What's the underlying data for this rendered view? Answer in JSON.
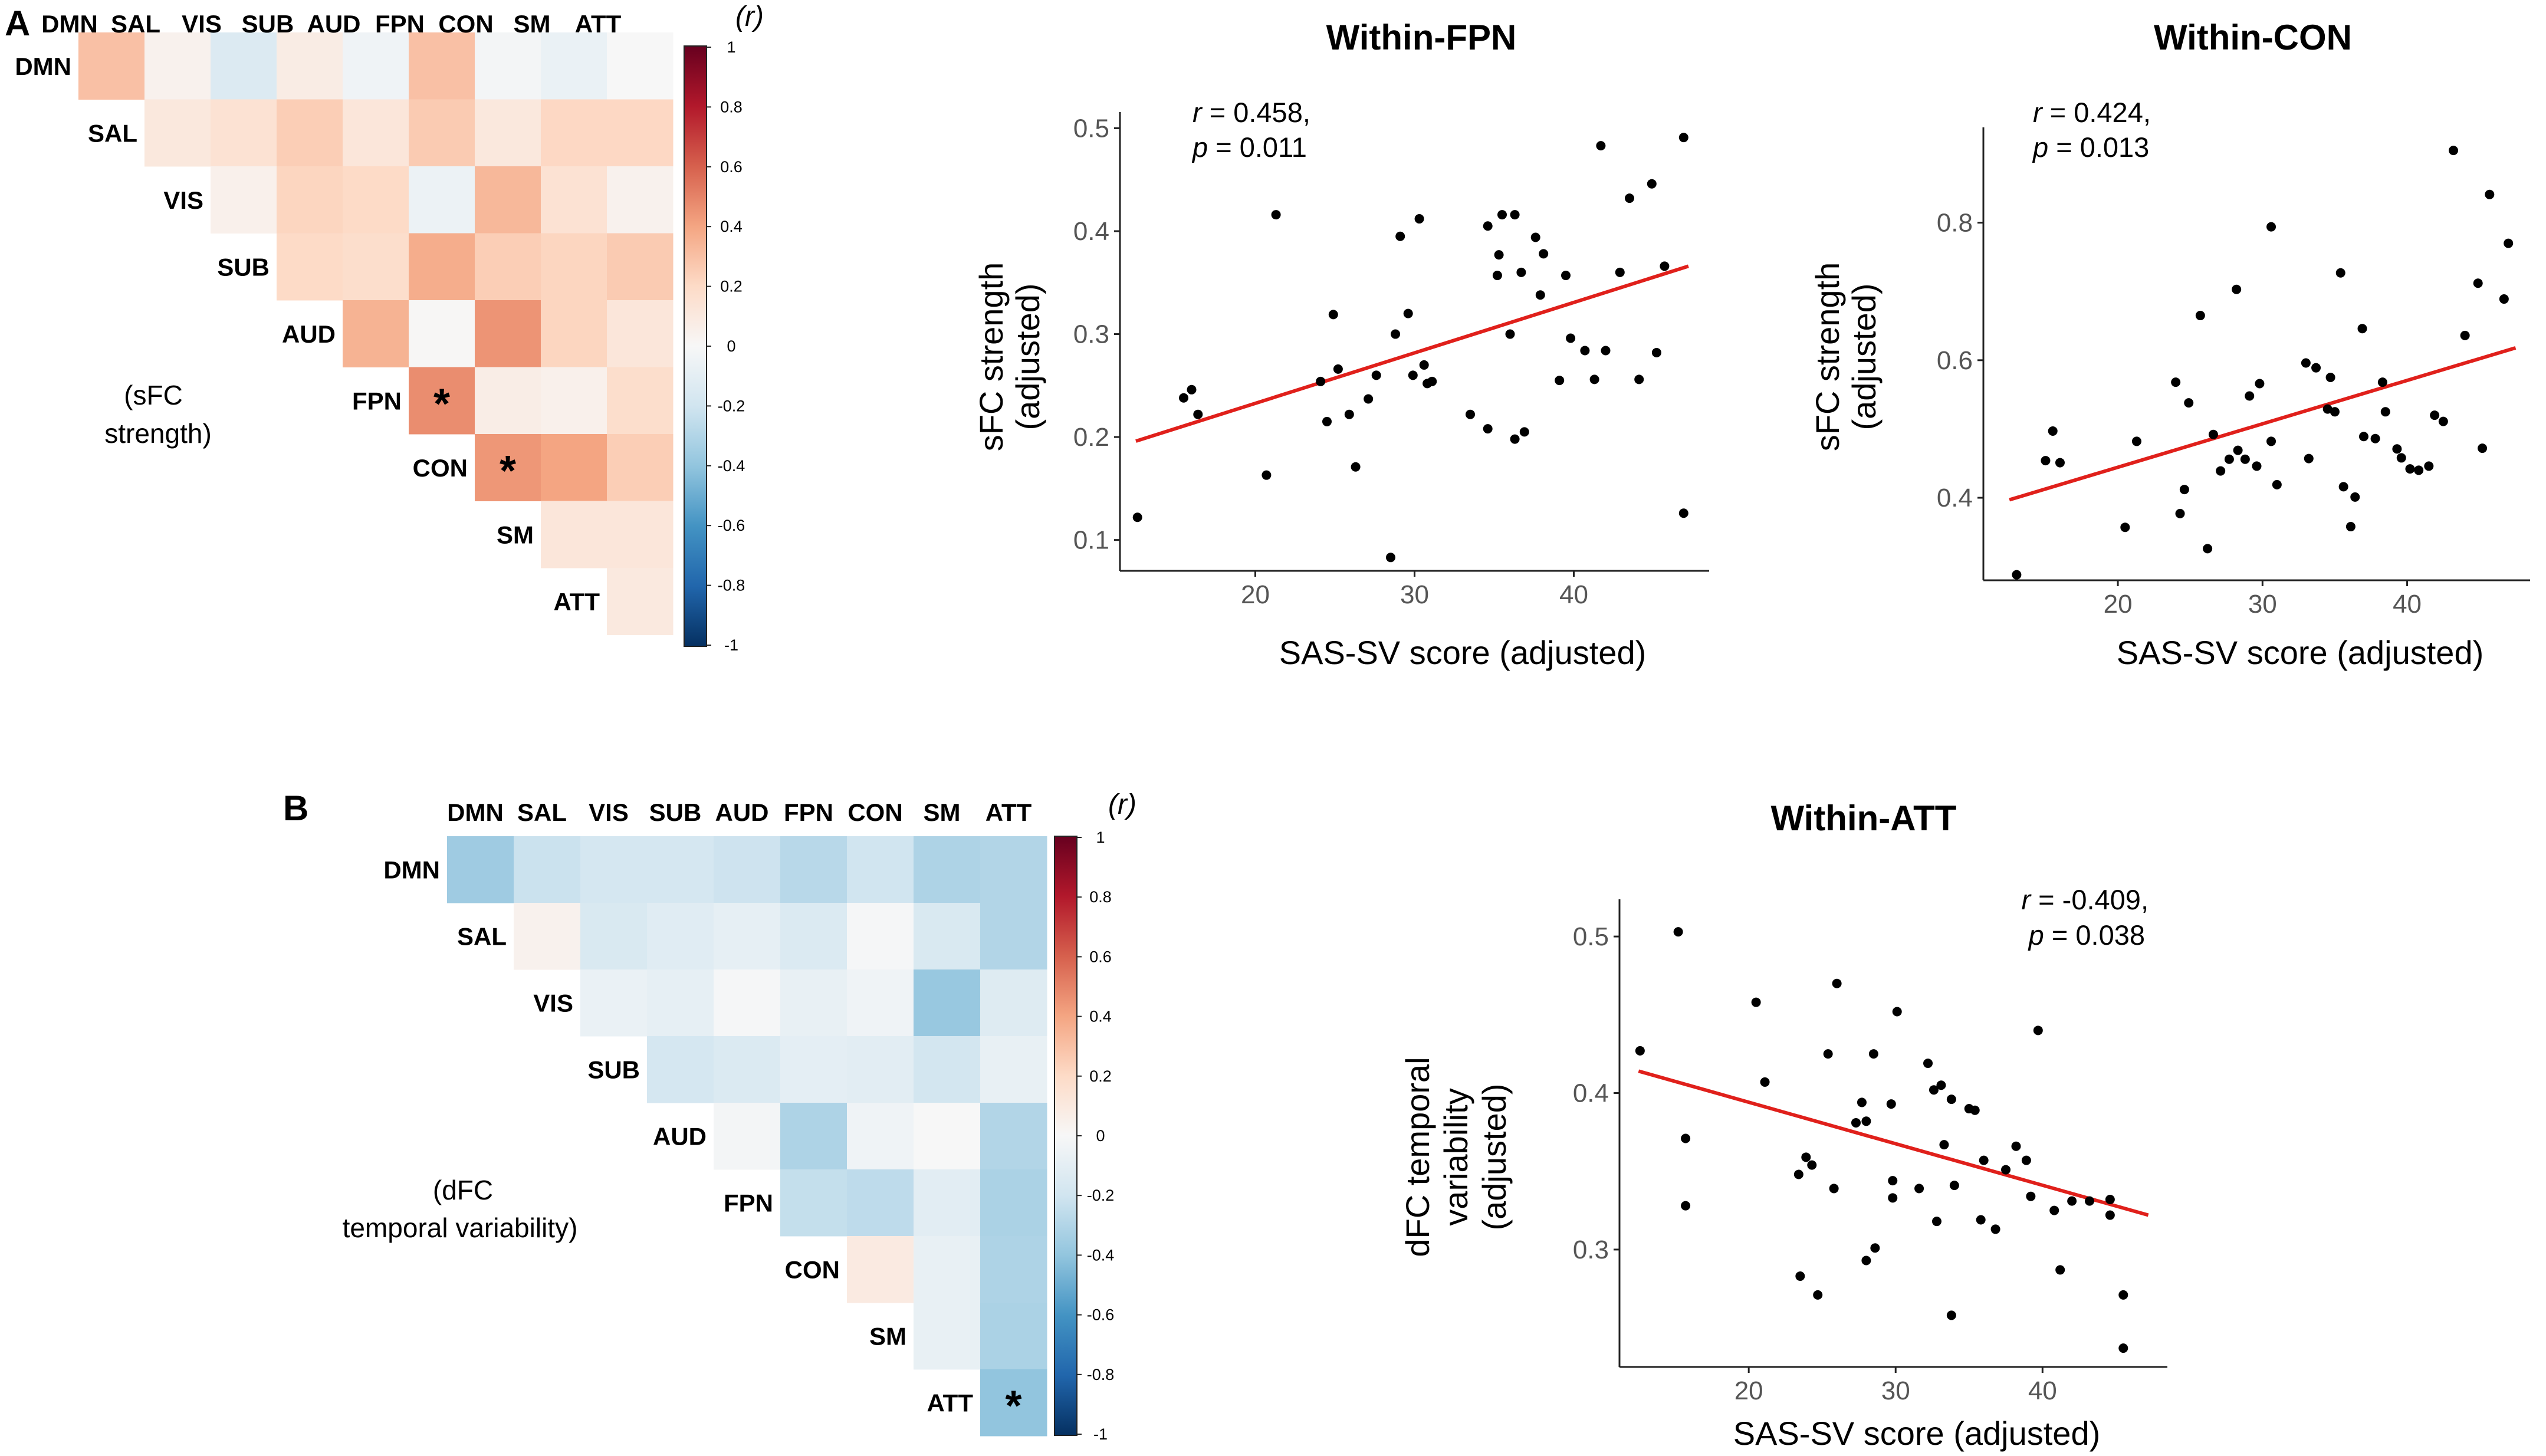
{
  "panels": [
    {
      "id": "A",
      "label": "A",
      "heatmap": {
        "type": "heatmap",
        "networks": [
          "DMN",
          "SAL",
          "VIS",
          "SUB",
          "AUD",
          "FPN",
          "CON",
          "SM",
          "ATT"
        ],
        "inline_label_lines": [
          "(sFC",
          "strength)"
        ],
        "colorbar_title": "(r)",
        "colorbar_ticks": [
          "1",
          "0.8",
          "0.6",
          "0.4",
          "0.2",
          "0",
          "-0.2",
          "-0.4",
          "-0.6",
          "-0.8",
          "-1"
        ],
        "values": [
          [
            0.3,
            0.04,
            -0.14,
            0.08,
            -0.04,
            0.3,
            -0.02,
            -0.07,
            0.0
          ],
          [
            null,
            0.11,
            0.15,
            0.25,
            0.12,
            0.26,
            0.11,
            0.21,
            0.21
          ],
          [
            null,
            null,
            0.05,
            0.22,
            0.2,
            -0.06,
            0.33,
            0.15,
            0.04
          ],
          [
            null,
            null,
            null,
            0.2,
            0.18,
            0.37,
            0.25,
            0.22,
            0.26
          ],
          [
            null,
            null,
            null,
            null,
            0.35,
            0.01,
            0.45,
            0.22,
            0.12
          ],
          [
            null,
            null,
            null,
            null,
            null,
            0.47,
            0.07,
            0.05,
            0.18
          ],
          [
            null,
            null,
            null,
            null,
            null,
            null,
            0.44,
            0.4,
            0.25
          ],
          [
            null,
            null,
            null,
            null,
            null,
            null,
            null,
            0.12,
            0.12
          ],
          [
            null,
            null,
            null,
            null,
            null,
            null,
            null,
            null,
            0.1
          ]
        ],
        "significant": [
          [
            5,
            5
          ],
          [
            6,
            6
          ]
        ],
        "significance_marker": "*"
      }
    },
    {
      "id": "B",
      "label": "B",
      "heatmap": {
        "type": "heatmap",
        "networks": [
          "DMN",
          "SAL",
          "VIS",
          "SUB",
          "AUD",
          "FPN",
          "CON",
          "SM",
          "ATT"
        ],
        "inline_label_lines": [
          "(dFC",
          "temporal variability)"
        ],
        "colorbar_title": "(r)",
        "colorbar_ticks": [
          "1",
          "0.8",
          "0.6",
          "0.4",
          "0.2",
          "0",
          "-0.2",
          "-0.4",
          "-0.6",
          "-0.8",
          "-1"
        ],
        "values": [
          [
            -0.36,
            -0.22,
            -0.18,
            -0.18,
            -0.21,
            -0.28,
            -0.2,
            -0.31,
            -0.3
          ],
          [
            null,
            0.04,
            -0.16,
            -0.12,
            -0.09,
            -0.15,
            -0.01,
            -0.16,
            -0.3
          ],
          [
            null,
            null,
            -0.07,
            -0.09,
            -0.01,
            -0.08,
            -0.04,
            -0.38,
            -0.13
          ],
          [
            null,
            null,
            null,
            -0.18,
            -0.15,
            -0.1,
            -0.11,
            -0.19,
            -0.08
          ],
          [
            null,
            null,
            null,
            null,
            -0.02,
            -0.31,
            -0.04,
            0.0,
            -0.3
          ],
          [
            null,
            null,
            null,
            null,
            null,
            -0.24,
            -0.26,
            -0.11,
            -0.32
          ],
          [
            null,
            null,
            null,
            null,
            null,
            null,
            0.09,
            -0.08,
            -0.31
          ],
          [
            null,
            null,
            null,
            null,
            null,
            null,
            null,
            -0.08,
            -0.32
          ],
          [
            null,
            null,
            null,
            null,
            null,
            null,
            null,
            null,
            -0.4
          ]
        ],
        "significant": [
          [
            8,
            8
          ]
        ],
        "significance_marker": "*"
      }
    }
  ],
  "chart_data": [
    {
      "type": "scatter",
      "title": "Within-FPN",
      "xlabel": "SAS-SV score (adjusted)",
      "ylabel_lines": [
        "sFC strength",
        "(adjusted)"
      ],
      "xlim": [
        11.5,
        48.5
      ],
      "ylim": [
        0.07,
        0.51
      ],
      "xticks": [
        20,
        30,
        40
      ],
      "yticks": [
        0.1,
        0.2,
        0.3,
        0.4,
        0.5
      ],
      "ytick_labels": [
        "0.1",
        "0.2",
        "0.3",
        "0.4",
        "0.5"
      ],
      "annotation": {
        "r_label": "r",
        "r_value": " = 0.458,",
        "p_label": "p",
        "p_value": " = 0.011",
        "align": "top-left"
      },
      "fit_line": {
        "color": "#e0201b",
        "x": [
          12.5,
          47.2
        ],
        "y": [
          0.196,
          0.366
        ]
      },
      "points": [
        [
          12.6,
          0.122
        ],
        [
          15.5,
          0.238
        ],
        [
          16.0,
          0.246
        ],
        [
          16.4,
          0.222
        ],
        [
          20.7,
          0.163
        ],
        [
          21.3,
          0.416
        ],
        [
          24.1,
          0.254
        ],
        [
          24.5,
          0.215
        ],
        [
          24.9,
          0.319
        ],
        [
          25.2,
          0.266
        ],
        [
          25.9,
          0.222
        ],
        [
          26.3,
          0.171
        ],
        [
          27.1,
          0.237
        ],
        [
          27.6,
          0.26
        ],
        [
          28.5,
          0.083
        ],
        [
          28.8,
          0.3
        ],
        [
          29.1,
          0.395
        ],
        [
          29.6,
          0.32
        ],
        [
          29.9,
          0.26
        ],
        [
          30.3,
          0.412
        ],
        [
          30.6,
          0.27
        ],
        [
          30.8,
          0.252
        ],
        [
          31.1,
          0.254
        ],
        [
          33.5,
          0.222
        ],
        [
          34.6,
          0.208
        ],
        [
          34.6,
          0.405
        ],
        [
          35.2,
          0.357
        ],
        [
          35.3,
          0.377
        ],
        [
          35.5,
          0.416
        ],
        [
          36.0,
          0.3
        ],
        [
          36.3,
          0.416
        ],
        [
          36.3,
          0.198
        ],
        [
          36.7,
          0.36
        ],
        [
          36.9,
          0.205
        ],
        [
          37.6,
          0.394
        ],
        [
          37.9,
          0.338
        ],
        [
          38.1,
          0.378
        ],
        [
          39.1,
          0.255
        ],
        [
          39.5,
          0.357
        ],
        [
          39.8,
          0.296
        ],
        [
          40.7,
          0.284
        ],
        [
          41.3,
          0.256
        ],
        [
          41.7,
          0.483
        ],
        [
          42.0,
          0.284
        ],
        [
          42.9,
          0.36
        ],
        [
          43.5,
          0.432
        ],
        [
          44.1,
          0.256
        ],
        [
          44.9,
          0.446
        ],
        [
          45.2,
          0.282
        ],
        [
          45.7,
          0.366
        ],
        [
          46.9,
          0.491
        ],
        [
          46.9,
          0.126
        ]
      ]
    },
    {
      "type": "scatter",
      "title": "Within-CON",
      "xlabel": "SAS-SV score (adjusted)",
      "ylabel_lines": [
        "sFC strength",
        "(adjusted)"
      ],
      "xlim": [
        10.7,
        48.5
      ],
      "ylim": [
        0.28,
        0.93
      ],
      "xticks": [
        20,
        30,
        40
      ],
      "yticks": [
        0.4,
        0.6,
        0.8
      ],
      "ytick_labels": [
        "0.4",
        "0.6",
        "0.8"
      ],
      "annotation": {
        "r_label": "r",
        "r_value": " = 0.424,",
        "p_label": "p",
        "p_value": " = 0.013",
        "align": "top-left"
      },
      "fit_line": {
        "color": "#e0201b",
        "x": [
          12.5,
          47.5
        ],
        "y": [
          0.397,
          0.618
        ]
      },
      "points": [
        [
          13.0,
          0.288
        ],
        [
          15.0,
          0.454
        ],
        [
          15.5,
          0.497
        ],
        [
          16.0,
          0.451
        ],
        [
          20.5,
          0.357
        ],
        [
          21.3,
          0.482
        ],
        [
          24.0,
          0.568
        ],
        [
          24.3,
          0.377
        ],
        [
          24.6,
          0.412
        ],
        [
          24.9,
          0.538
        ],
        [
          25.7,
          0.665
        ],
        [
          26.2,
          0.326
        ],
        [
          26.6,
          0.492
        ],
        [
          27.1,
          0.439
        ],
        [
          27.7,
          0.456
        ],
        [
          28.2,
          0.703
        ],
        [
          28.3,
          0.469
        ],
        [
          28.8,
          0.456
        ],
        [
          29.1,
          0.548
        ],
        [
          29.6,
          0.446
        ],
        [
          29.8,
          0.566
        ],
        [
          30.6,
          0.482
        ],
        [
          30.6,
          0.794
        ],
        [
          31.0,
          0.419
        ],
        [
          33.0,
          0.596
        ],
        [
          33.2,
          0.457
        ],
        [
          33.7,
          0.589
        ],
        [
          34.5,
          0.529
        ],
        [
          34.7,
          0.575
        ],
        [
          35.0,
          0.525
        ],
        [
          35.4,
          0.727
        ],
        [
          35.6,
          0.416
        ],
        [
          36.1,
          0.358
        ],
        [
          36.4,
          0.401
        ],
        [
          36.9,
          0.646
        ],
        [
          37.0,
          0.489
        ],
        [
          37.8,
          0.486
        ],
        [
          38.3,
          0.568
        ],
        [
          38.5,
          0.525
        ],
        [
          39.3,
          0.471
        ],
        [
          39.6,
          0.458
        ],
        [
          40.2,
          0.442
        ],
        [
          40.8,
          0.44
        ],
        [
          41.5,
          0.446
        ],
        [
          41.9,
          0.52
        ],
        [
          42.5,
          0.511
        ],
        [
          43.2,
          0.905
        ],
        [
          44.0,
          0.636
        ],
        [
          44.9,
          0.712
        ],
        [
          45.2,
          0.472
        ],
        [
          45.7,
          0.841
        ],
        [
          46.7,
          0.689
        ],
        [
          47.0,
          0.77
        ]
      ]
    },
    {
      "type": "scatter",
      "title": "Within-ATT",
      "xlabel": "SAS-SV score (adjusted)",
      "ylabel_lines": [
        "dFC temporal",
        "variability",
        "(adjusted)"
      ],
      "xlim": [
        11.2,
        48.5
      ],
      "ylim": [
        0.225,
        0.52
      ],
      "xticks": [
        20,
        30,
        40
      ],
      "yticks": [
        0.3,
        0.4,
        0.5
      ],
      "ytick_labels": [
        "0.3",
        "0.4",
        "0.5"
      ],
      "annotation": {
        "r_label": "r",
        "r_value": " = -0.409,",
        "p_label": "p",
        "p_value": " = 0.038",
        "align": "top-right"
      },
      "fit_line": {
        "color": "#e0201b",
        "x": [
          12.5,
          47.2
        ],
        "y": [
          0.414,
          0.322
        ]
      },
      "points": [
        [
          12.6,
          0.427
        ],
        [
          15.2,
          0.503
        ],
        [
          15.7,
          0.328
        ],
        [
          15.7,
          0.371
        ],
        [
          20.5,
          0.458
        ],
        [
          21.1,
          0.407
        ],
        [
          23.4,
          0.348
        ],
        [
          23.5,
          0.283
        ],
        [
          23.9,
          0.359
        ],
        [
          24.3,
          0.354
        ],
        [
          24.7,
          0.271
        ],
        [
          25.4,
          0.425
        ],
        [
          25.8,
          0.339
        ],
        [
          26.0,
          0.47
        ],
        [
          27.3,
          0.381
        ],
        [
          27.7,
          0.394
        ],
        [
          28.0,
          0.293
        ],
        [
          28.0,
          0.382
        ],
        [
          28.5,
          0.425
        ],
        [
          28.6,
          0.301
        ],
        [
          29.7,
          0.393
        ],
        [
          29.8,
          0.344
        ],
        [
          29.8,
          0.333
        ],
        [
          30.1,
          0.452
        ],
        [
          31.6,
          0.339
        ],
        [
          32.2,
          0.419
        ],
        [
          32.6,
          0.402
        ],
        [
          32.8,
          0.318
        ],
        [
          33.1,
          0.405
        ],
        [
          33.3,
          0.367
        ],
        [
          33.8,
          0.396
        ],
        [
          33.8,
          0.258
        ],
        [
          34.0,
          0.341
        ],
        [
          35.0,
          0.39
        ],
        [
          35.4,
          0.389
        ],
        [
          35.8,
          0.319
        ],
        [
          36.0,
          0.357
        ],
        [
          36.8,
          0.313
        ],
        [
          37.5,
          0.351
        ],
        [
          38.2,
          0.366
        ],
        [
          38.9,
          0.357
        ],
        [
          39.2,
          0.334
        ],
        [
          39.7,
          0.44
        ],
        [
          40.8,
          0.325
        ],
        [
          41.2,
          0.287
        ],
        [
          42.0,
          0.331
        ],
        [
          43.2,
          0.331
        ],
        [
          44.6,
          0.332
        ],
        [
          44.6,
          0.322
        ],
        [
          45.5,
          0.271
        ],
        [
          45.5,
          0.237
        ]
      ]
    }
  ]
}
